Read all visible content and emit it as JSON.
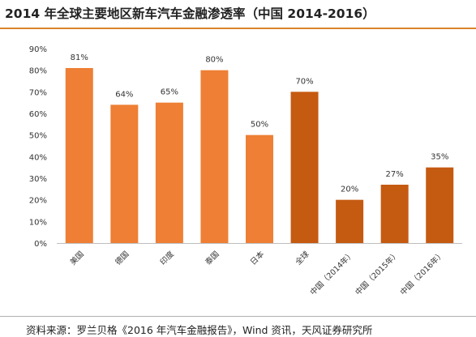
{
  "title": "2014 年全球主要地区新车汽车金融渗透率（中国 2014-2016）",
  "source": "资料来源：罗兰贝格《2016 年汽车金融报告》，Wind 资讯，天风证券研究所",
  "colors": {
    "light": "#ee7f34",
    "dark": "#c55a11",
    "axis": "#bfbfbf",
    "accent_rule": "#d9822b"
  },
  "chart_data": {
    "type": "bar",
    "categories": [
      "美国",
      "德国",
      "印度",
      "泰国",
      "日本",
      "全球",
      "中国（2014年）",
      "中国（2015年）",
      "中国（2016年）"
    ],
    "values": [
      81,
      64,
      65,
      80,
      50,
      70,
      20,
      27,
      35
    ],
    "value_labels": [
      "81%",
      "64%",
      "65%",
      "80%",
      "50%",
      "70%",
      "20%",
      "27%",
      "35%"
    ],
    "bar_colors": [
      "#ee7f34",
      "#ee7f34",
      "#ee7f34",
      "#ee7f34",
      "#ee7f34",
      "#c55a11",
      "#c55a11",
      "#c55a11",
      "#c55a11"
    ],
    "ylim": [
      0,
      90
    ],
    "yticks": [
      "0%",
      "10%",
      "20%",
      "30%",
      "40%",
      "50%",
      "60%",
      "70%",
      "80%",
      "90%"
    ],
    "grid": false,
    "legend": "none"
  }
}
